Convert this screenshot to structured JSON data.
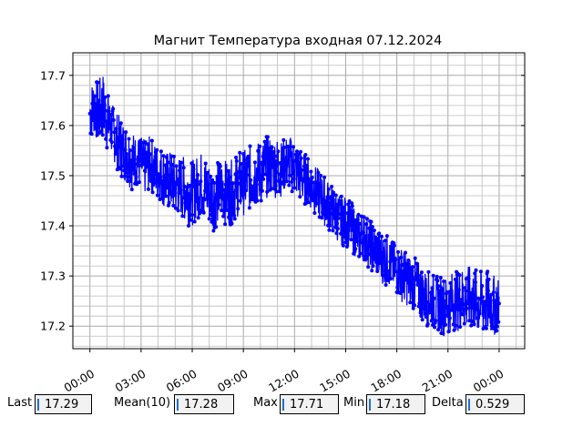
{
  "chart_data": {
    "type": "line",
    "title": "Магнит Температура входная 07.12.2024",
    "xlabel": "",
    "ylabel": "",
    "x_range_hours": [
      -1.0,
      25.5
    ],
    "ylim": [
      17.155,
      17.745
    ],
    "x_ticks": [
      {
        "label": "00:00",
        "hour": 0
      },
      {
        "label": "03:00",
        "hour": 3
      },
      {
        "label": "06:00",
        "hour": 6
      },
      {
        "label": "09:00",
        "hour": 9
      },
      {
        "label": "12:00",
        "hour": 12
      },
      {
        "label": "15:00",
        "hour": 15
      },
      {
        "label": "18:00",
        "hour": 18
      },
      {
        "label": "21:00",
        "hour": 21
      },
      {
        "label": "00:00",
        "hour": 24
      }
    ],
    "y_ticks": [
      17.2,
      17.3,
      17.4,
      17.5,
      17.6,
      17.7
    ],
    "grid": true,
    "minor_grid": true,
    "series": [
      {
        "name": "",
        "color": "#0000ff",
        "x_hours": [
          0.0,
          0.25,
          0.5,
          0.75,
          1.0,
          1.25,
          1.5,
          1.75,
          2.0,
          2.25,
          2.5,
          2.75,
          3.0,
          3.25,
          3.5,
          3.75,
          4.0,
          4.25,
          4.5,
          4.75,
          5.0,
          5.25,
          5.5,
          5.75,
          6.0,
          6.25,
          6.5,
          6.75,
          7.0,
          7.25,
          7.5,
          7.75,
          8.0,
          8.25,
          8.5,
          8.75,
          9.0,
          9.25,
          9.5,
          9.75,
          10.0,
          10.25,
          10.5,
          10.75,
          11.0,
          11.25,
          11.5,
          11.75,
          12.0,
          12.25,
          12.5,
          12.75,
          13.0,
          13.25,
          13.5,
          13.75,
          14.0,
          14.25,
          14.5,
          14.75,
          15.0,
          15.25,
          15.5,
          15.75,
          16.0,
          16.25,
          16.5,
          16.75,
          17.0,
          17.25,
          17.5,
          17.75,
          18.0,
          18.25,
          18.5,
          18.75,
          19.0,
          19.25,
          19.5,
          19.75,
          20.0,
          20.25,
          20.5,
          20.75,
          21.0,
          21.25,
          21.5,
          21.75,
          22.0,
          22.25,
          22.5,
          22.75,
          23.0,
          23.25,
          23.5,
          23.75,
          24.0
        ],
        "low": [
          17.57,
          17.58,
          17.56,
          17.57,
          17.55,
          17.54,
          17.52,
          17.5,
          17.49,
          17.48,
          17.47,
          17.48,
          17.47,
          17.46,
          17.47,
          17.46,
          17.45,
          17.44,
          17.43,
          17.43,
          17.42,
          17.42,
          17.41,
          17.4,
          17.4,
          17.41,
          17.42,
          17.41,
          17.4,
          17.39,
          17.4,
          17.41,
          17.4,
          17.4,
          17.41,
          17.42,
          17.42,
          17.43,
          17.43,
          17.44,
          17.44,
          17.45,
          17.46,
          17.46,
          17.45,
          17.46,
          17.47,
          17.47,
          17.46,
          17.45,
          17.44,
          17.44,
          17.43,
          17.42,
          17.41,
          17.4,
          17.39,
          17.38,
          17.37,
          17.36,
          17.36,
          17.35,
          17.34,
          17.33,
          17.33,
          17.32,
          17.31,
          17.3,
          17.29,
          17.28,
          17.28,
          17.27,
          17.26,
          17.25,
          17.24,
          17.24,
          17.23,
          17.22,
          17.21,
          17.2,
          17.2,
          17.19,
          17.19,
          17.18,
          17.18,
          17.19,
          17.19,
          17.19,
          17.19,
          17.19,
          17.19,
          17.18,
          17.18,
          17.18,
          17.18,
          17.18,
          17.19
        ],
        "high": [
          17.68,
          17.7,
          17.69,
          17.71,
          17.67,
          17.65,
          17.63,
          17.62,
          17.61,
          17.6,
          17.59,
          17.58,
          17.58,
          17.57,
          17.58,
          17.57,
          17.56,
          17.56,
          17.55,
          17.55,
          17.54,
          17.54,
          17.54,
          17.53,
          17.53,
          17.54,
          17.55,
          17.54,
          17.53,
          17.52,
          17.53,
          17.54,
          17.53,
          17.53,
          17.54,
          17.55,
          17.55,
          17.56,
          17.56,
          17.57,
          17.57,
          17.58,
          17.58,
          17.58,
          17.58,
          17.57,
          17.58,
          17.58,
          17.57,
          17.56,
          17.55,
          17.54,
          17.53,
          17.52,
          17.51,
          17.5,
          17.49,
          17.48,
          17.47,
          17.46,
          17.46,
          17.45,
          17.44,
          17.43,
          17.43,
          17.42,
          17.41,
          17.4,
          17.39,
          17.39,
          17.38,
          17.37,
          17.36,
          17.36,
          17.35,
          17.34,
          17.34,
          17.33,
          17.32,
          17.31,
          17.31,
          17.3,
          17.3,
          17.3,
          17.3,
          17.31,
          17.31,
          17.32,
          17.32,
          17.32,
          17.32,
          17.31,
          17.31,
          17.31,
          17.31,
          17.3,
          17.3
        ]
      }
    ]
  },
  "stats": [
    {
      "label": "Last",
      "value": "17.29"
    },
    {
      "label": "Mean(10)",
      "value": "17.28"
    },
    {
      "label": "Max",
      "value": "17.71"
    },
    {
      "label": "Min",
      "value": "17.18"
    },
    {
      "label": "Delta",
      "value": "0.529"
    }
  ]
}
